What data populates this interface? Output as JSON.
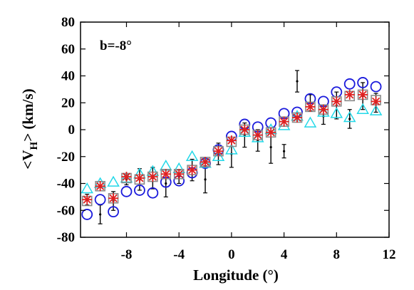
{
  "chart_data": {
    "type": "scatter",
    "annotation": "b=-8°",
    "xlabel": "Longitude (°)",
    "ylabel_main": "<V",
    "ylabel_sub": "H",
    "ylabel_end": "> (km/s)",
    "xlim": [
      -11.5,
      12
    ],
    "ylim": [
      -80,
      80
    ],
    "xticks": [
      -8,
      -4,
      0,
      4,
      8,
      12
    ],
    "xtick_labels": [
      "-8",
      "-4",
      "0",
      "4",
      "8",
      "12"
    ],
    "yticks": [
      -80,
      -60,
      -40,
      -20,
      0,
      20,
      40,
      60,
      80
    ],
    "ytick_labels": [
      "-80",
      "-60",
      "-40",
      "-20",
      "0",
      "20",
      "40",
      "60",
      "80"
    ],
    "grid": false,
    "series": [
      {
        "marker": "errorbar",
        "color": "#000000",
        "x": [
          -11,
          -10,
          -9,
          -8,
          -7,
          -6,
          -5,
          -4,
          -3,
          -2,
          -1,
          0,
          1,
          2,
          3,
          4,
          5,
          6,
          7,
          8,
          9,
          10,
          11
        ],
        "y": [
          -52,
          -63,
          -53,
          -37,
          -37,
          -36,
          -40,
          -35,
          -30,
          -37,
          -18,
          -18,
          -4,
          -8,
          -13,
          -16,
          36,
          20,
          10,
          18,
          8,
          25,
          20
        ],
        "err": [
          4,
          7,
          7,
          4,
          8,
          8,
          10,
          5,
          8,
          10,
          8,
          10,
          9,
          8,
          12,
          5,
          8,
          6,
          6,
          10,
          7,
          10,
          7
        ]
      },
      {
        "marker": "circle",
        "color": "#1a1adc",
        "x": [
          -11,
          -10,
          -9,
          -8,
          -7,
          -6,
          -5,
          -4,
          -3,
          -2,
          -1,
          0,
          1,
          2,
          3,
          4,
          5,
          6,
          7,
          8,
          9,
          10,
          11
        ],
        "y": [
          -63,
          -52,
          -61,
          -46,
          -45,
          -47,
          -39,
          -38,
          -32,
          -25,
          -15,
          -5,
          4,
          2,
          5,
          12,
          13,
          23,
          21,
          28,
          34,
          35,
          32
        ]
      },
      {
        "marker": "triangle",
        "color": "#22d8e8",
        "x": [
          -11,
          -10,
          -9,
          -8,
          -7,
          -6,
          -5,
          -4,
          -3,
          -2,
          -1,
          0,
          1,
          2,
          3,
          4,
          5,
          6,
          7,
          8,
          9,
          10,
          11
        ],
        "y": [
          -44,
          -40,
          -39,
          -36,
          -33,
          -31,
          -27,
          -29,
          -20,
          -25,
          -20,
          -15,
          -2,
          -6,
          0,
          3,
          10,
          5,
          13,
          12,
          9,
          15,
          14
        ]
      },
      {
        "marker": "square",
        "color": "#8a8a8a",
        "x": [
          -11,
          -10,
          -9,
          -8,
          -7,
          -6,
          -5,
          -4,
          -3,
          -2,
          -1,
          0,
          1,
          2,
          3,
          4,
          5,
          6,
          7,
          8,
          9,
          10,
          11
        ],
        "y": [
          -53,
          -42,
          -51,
          -36,
          -37,
          -35,
          -33,
          -33,
          -30,
          -24,
          -16,
          -9,
          0,
          -4,
          -2,
          6,
          9,
          17,
          15,
          21,
          25,
          26,
          22
        ]
      },
      {
        "marker": "asterisk",
        "color": "#e02020",
        "x": [
          -11,
          -10,
          -9,
          -8,
          -7,
          -6,
          -5,
          -4,
          -3,
          -2,
          -1,
          0,
          1,
          2,
          3,
          4,
          5,
          6,
          7,
          8,
          9,
          10,
          11
        ],
        "y": [
          -52,
          -42,
          -51,
          -35,
          -36,
          -35,
          -33,
          -33,
          -30,
          -24,
          -16,
          -8,
          0,
          -4,
          -2,
          6,
          9,
          17,
          15,
          21,
          26,
          26,
          21
        ]
      }
    ]
  }
}
